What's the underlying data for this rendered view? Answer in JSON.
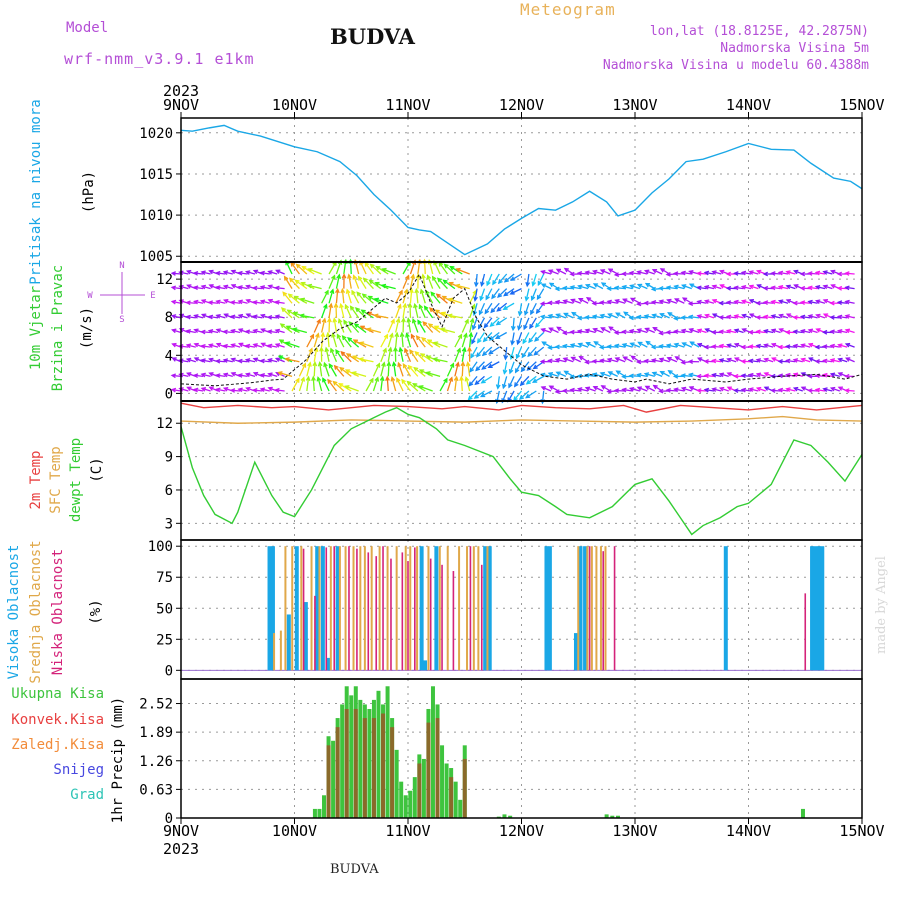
{
  "header": {
    "model_label": "Model",
    "model_name": "wrf-nmm_v3.9.1 e1km",
    "station": "BUDVA",
    "meteogram_label": "Meteogram",
    "lonlat": "lon,lat (18.8125E, 42.2875N)",
    "altitude": "Nadmorska Visina 5m",
    "model_altitude": "Nadmorska Visina u modelu 60.4388m",
    "footer_station": "BUDVA",
    "signature": "made by Angel"
  },
  "colors": {
    "pressure": "#1aa7e6",
    "temp2m": "#e84040",
    "sfc_temp": "#e0a84a",
    "dewpoint": "#33cc33",
    "high_cloud": "#1aa7e6",
    "mid_cloud": "#e0a84a",
    "low_cloud": "#d4237a",
    "total_precip": "#3ec43e",
    "convective_precip": "#e84040",
    "freezing_rain": "#f28c3a",
    "snow": "#4848e0",
    "hail": "#2ec4b6",
    "wind_purple": "#8a2be2",
    "wind_cyan": "#1ab2e6",
    "grid": "#9a9a9a"
  },
  "chart_data": [
    {
      "type": "line",
      "title": "",
      "ylabel": [
        "Pritisak na nivou mora",
        "(hPa)"
      ],
      "ylim": [
        1004.3,
        1021.8
      ],
      "yticks": [
        1005,
        1010,
        1015,
        1020
      ],
      "grid": true,
      "x_unit": "days since 9NOV 2023 00Z",
      "series": [
        {
          "name": "Pritisak na nivou mora",
          "x": [
            0,
            0.1,
            0.25,
            0.38,
            0.5,
            0.7,
            1.0,
            1.2,
            1.4,
            1.55,
            1.7,
            1.85,
            2.0,
            2.1,
            2.2,
            2.35,
            2.5,
            2.7,
            2.85,
            3.0,
            3.15,
            3.3,
            3.45,
            3.6,
            3.75,
            3.85,
            4.0,
            4.15,
            4.3,
            4.45,
            4.6,
            4.8,
            5.0,
            5.2,
            5.4,
            5.55,
            5.75,
            5.9,
            6.0
          ],
          "values": [
            1020.3,
            1020.2,
            1020.6,
            1020.9,
            1020.2,
            1019.6,
            1018.3,
            1017.7,
            1016.5,
            1014.8,
            1012.5,
            1010.6,
            1008.5,
            1008.2,
            1008.0,
            1006.6,
            1005.2,
            1006.5,
            1008.3,
            1009.6,
            1010.8,
            1010.6,
            1011.6,
            1012.9,
            1011.6,
            1009.9,
            1010.6,
            1012.7,
            1014.4,
            1016.5,
            1016.8,
            1017.7,
            1018.7,
            1018.0,
            1017.9,
            1016.3,
            1014.5,
            1014.1,
            1013.2
          ]
        }
      ]
    },
    {
      "type": "line",
      "title": "",
      "ylabel": [
        "10m Vjetar",
        "Brzina i Pravac",
        "(m/s)"
      ],
      "direction_legend": "N S E W",
      "ylim": [
        -0.8,
        13.8
      ],
      "yticks": [
        0,
        4,
        8,
        12
      ],
      "grid": true,
      "series": [
        {
          "name": "10m Vjetar Brzina",
          "x": [
            0,
            0.3,
            0.6,
            0.8,
            0.9,
            1.0,
            1.1,
            1.25,
            1.4,
            1.55,
            1.7,
            1.8,
            1.9,
            2.0,
            2.1,
            2.2,
            2.3,
            2.4,
            2.5,
            2.6,
            2.7,
            2.85,
            3.0,
            3.2,
            3.4,
            3.6,
            3.8,
            4.0,
            4.1,
            4.3,
            4.5,
            4.8,
            5.0,
            5.3,
            5.6,
            5.85,
            6.0
          ],
          "values": [
            1.0,
            0.8,
            1.1,
            1.4,
            1.5,
            2.5,
            3.5,
            5.5,
            6.8,
            7.5,
            9.0,
            10.0,
            9.5,
            10.5,
            12.5,
            9.5,
            7.0,
            10.0,
            11.0,
            8.0,
            6.0,
            4.5,
            3.0,
            1.8,
            1.5,
            2.0,
            1.5,
            1.2,
            1.5,
            1.0,
            1.5,
            1.2,
            1.5,
            1.8,
            2.0,
            1.5,
            2.0
          ]
        }
      ]
    },
    {
      "type": "line",
      "title": "",
      "ylabel": [
        "2m Temp",
        "SFC Temp",
        "dewpt Temp",
        "(C)"
      ],
      "ylim": [
        1.5,
        14.0
      ],
      "yticks": [
        3,
        6,
        9,
        12
      ],
      "grid": true,
      "series": [
        {
          "name": "2m Temp",
          "x": [
            0,
            0.2,
            0.5,
            0.8,
            1.0,
            1.3,
            1.5,
            1.7,
            2.0,
            2.3,
            2.5,
            2.8,
            3.0,
            3.3,
            3.6,
            3.9,
            4.1,
            4.4,
            4.7,
            5.0,
            5.3,
            5.6,
            5.8,
            6.0
          ],
          "values": [
            13.8,
            13.4,
            13.6,
            13.4,
            13.5,
            13.2,
            13.4,
            13.6,
            13.5,
            13.3,
            13.5,
            13.2,
            13.6,
            13.4,
            13.3,
            13.6,
            13.0,
            13.6,
            13.4,
            13.2,
            13.5,
            13.2,
            13.4,
            13.6
          ]
        },
        {
          "name": "SFC Temp",
          "x": [
            0,
            0.5,
            1.0,
            1.5,
            2.0,
            2.5,
            3.0,
            3.5,
            4.0,
            4.5,
            5.0,
            5.3,
            5.6,
            6.0
          ],
          "values": [
            12.2,
            12.0,
            12.1,
            12.3,
            12.2,
            12.1,
            12.3,
            12.2,
            12.1,
            12.2,
            12.4,
            12.6,
            12.3,
            12.2
          ]
        },
        {
          "name": "dewpt Temp",
          "x": [
            0,
            0.1,
            0.2,
            0.3,
            0.45,
            0.5,
            0.65,
            0.75,
            0.8,
            0.9,
            1.0,
            1.15,
            1.35,
            1.5,
            1.7,
            1.8,
            1.9,
            2.0,
            2.1,
            2.25,
            2.35,
            2.5,
            2.75,
            2.9,
            3.0,
            3.15,
            3.3,
            3.4,
            3.6,
            3.8,
            4.0,
            4.15,
            4.3,
            4.4,
            4.5,
            4.6,
            4.75,
            4.9,
            5.0,
            5.2,
            5.4,
            5.55,
            5.7,
            5.85,
            6.0
          ],
          "values": [
            11.7,
            8.0,
            5.5,
            3.8,
            3.0,
            4.0,
            8.5,
            6.5,
            5.5,
            4.0,
            3.6,
            6.0,
            10.0,
            11.5,
            12.5,
            13.0,
            13.4,
            12.8,
            12.5,
            11.5,
            10.5,
            10.0,
            9.0,
            7.0,
            5.8,
            5.5,
            4.5,
            3.8,
            3.5,
            4.5,
            6.5,
            7.0,
            5.0,
            3.5,
            2.0,
            2.8,
            3.5,
            4.5,
            4.8,
            6.5,
            10.5,
            10.0,
            8.5,
            6.8,
            9.2
          ]
        }
      ]
    },
    {
      "type": "bar",
      "title": "",
      "ylabel": [
        "Visoka Oblacnost",
        "Srednja Oblacnost",
        "Niska Oblacnost",
        "(%)"
      ],
      "ylim": [
        -7,
        105
      ],
      "yticks": [
        0,
        25,
        50,
        75,
        100
      ],
      "grid": true,
      "series": [
        {
          "name": "Visoka Oblacnost",
          "x": [
            0.78,
            0.81,
            0.95,
            1.02,
            1.1,
            1.2,
            1.25,
            1.3,
            1.38,
            2.12,
            2.15,
            2.25,
            2.68,
            2.72,
            3.22,
            3.25,
            3.48,
            3.52,
            3.56,
            4.8,
            5.56,
            5.59,
            5.62,
            5.65
          ],
          "values": [
            100,
            100,
            45,
            100,
            55,
            100,
            100,
            10,
            100,
            100,
            8,
            100,
            100,
            100,
            100,
            100,
            30,
            100,
            100,
            100,
            100,
            100,
            100,
            100
          ]
        },
        {
          "name": "Srednja Oblacnost",
          "x": [
            0.82,
            0.88,
            0.92,
            0.98,
            1.06,
            1.15,
            1.22,
            1.32,
            1.4,
            1.45,
            1.52,
            1.58,
            1.62,
            1.68,
            1.75,
            1.82,
            1.9,
            1.98,
            2.02,
            2.08,
            2.18,
            2.28,
            2.35,
            2.45,
            2.52,
            2.58,
            2.62,
            2.7,
            3.5,
            3.58,
            3.62,
            3.66,
            3.7,
            3.74
          ],
          "values": [
            30,
            32,
            100,
            100,
            100,
            100,
            100,
            100,
            100,
            100,
            100,
            100,
            100,
            100,
            100,
            100,
            100,
            100,
            100,
            100,
            100,
            100,
            100,
            100,
            100,
            100,
            100,
            100,
            100,
            100,
            100,
            100,
            100,
            100
          ]
        },
        {
          "name": "Niska Oblacnost",
          "x": [
            1.08,
            1.18,
            1.28,
            1.35,
            1.48,
            1.55,
            1.65,
            1.72,
            1.78,
            1.85,
            1.95,
            2.0,
            2.06,
            2.2,
            2.3,
            2.4,
            2.55,
            2.65,
            3.6,
            3.72,
            3.82,
            5.5
          ],
          "values": [
            98,
            60,
            99,
            100,
            100,
            98,
            95,
            92,
            100,
            90,
            95,
            88,
            99,
            90,
            85,
            80,
            100,
            85,
            100,
            96,
            100,
            62
          ]
        }
      ]
    },
    {
      "type": "bar",
      "title": "",
      "ylabel": [
        "1hr Precip (mm)"
      ],
      "legend": [
        "Ukupna Kisa",
        "Konvek.Kisa",
        "Zaledj.Kisa",
        "Snijeg",
        "Grad"
      ],
      "ylim": [
        0,
        3.06
      ],
      "yticks": [
        0,
        0.63,
        1.26,
        1.89,
        2.52
      ],
      "xticks": [
        "9NOV",
        "10NOV",
        "11NOV",
        "12NOV",
        "13NOV",
        "14NOV",
        "15NOV"
      ],
      "xtick_year": "2023",
      "grid": true,
      "series": [
        {
          "name": "Ukupna Kisa",
          "x": [
            1.18,
            1.22,
            1.26,
            1.3,
            1.34,
            1.38,
            1.42,
            1.46,
            1.5,
            1.54,
            1.58,
            1.62,
            1.66,
            1.7,
            1.74,
            1.78,
            1.82,
            1.86,
            1.9,
            1.94,
            1.98,
            2.02,
            2.06,
            2.1,
            2.14,
            2.18,
            2.22,
            2.26,
            2.3,
            2.34,
            2.38,
            2.42,
            2.46,
            2.5,
            2.8,
            2.85,
            2.9,
            3.75,
            3.8,
            3.85,
            5.48
          ],
          "values": [
            0.2,
            0.2,
            0.5,
            1.8,
            1.7,
            2.2,
            2.5,
            2.9,
            2.7,
            2.9,
            2.6,
            2.5,
            2.4,
            2.6,
            2.8,
            2.5,
            2.9,
            2.2,
            1.5,
            0.8,
            0.5,
            0.6,
            0.9,
            1.4,
            1.3,
            2.4,
            2.9,
            2.5,
            1.6,
            1.2,
            1.1,
            0.8,
            0.4,
            1.6,
            0.03,
            0.08,
            0.05,
            0.08,
            0.05,
            0.05,
            0.2
          ]
        },
        {
          "name": "Konvek.Kisa",
          "x": [
            1.3,
            1.38,
            1.46,
            1.54,
            1.62,
            1.7,
            1.78,
            1.86,
            2.1,
            2.18,
            2.26,
            2.38,
            2.5
          ],
          "values": [
            1.6,
            2.0,
            2.4,
            2.4,
            2.2,
            2.2,
            2.3,
            2.0,
            1.2,
            2.1,
            2.2,
            0.9,
            1.3
          ]
        }
      ]
    }
  ]
}
